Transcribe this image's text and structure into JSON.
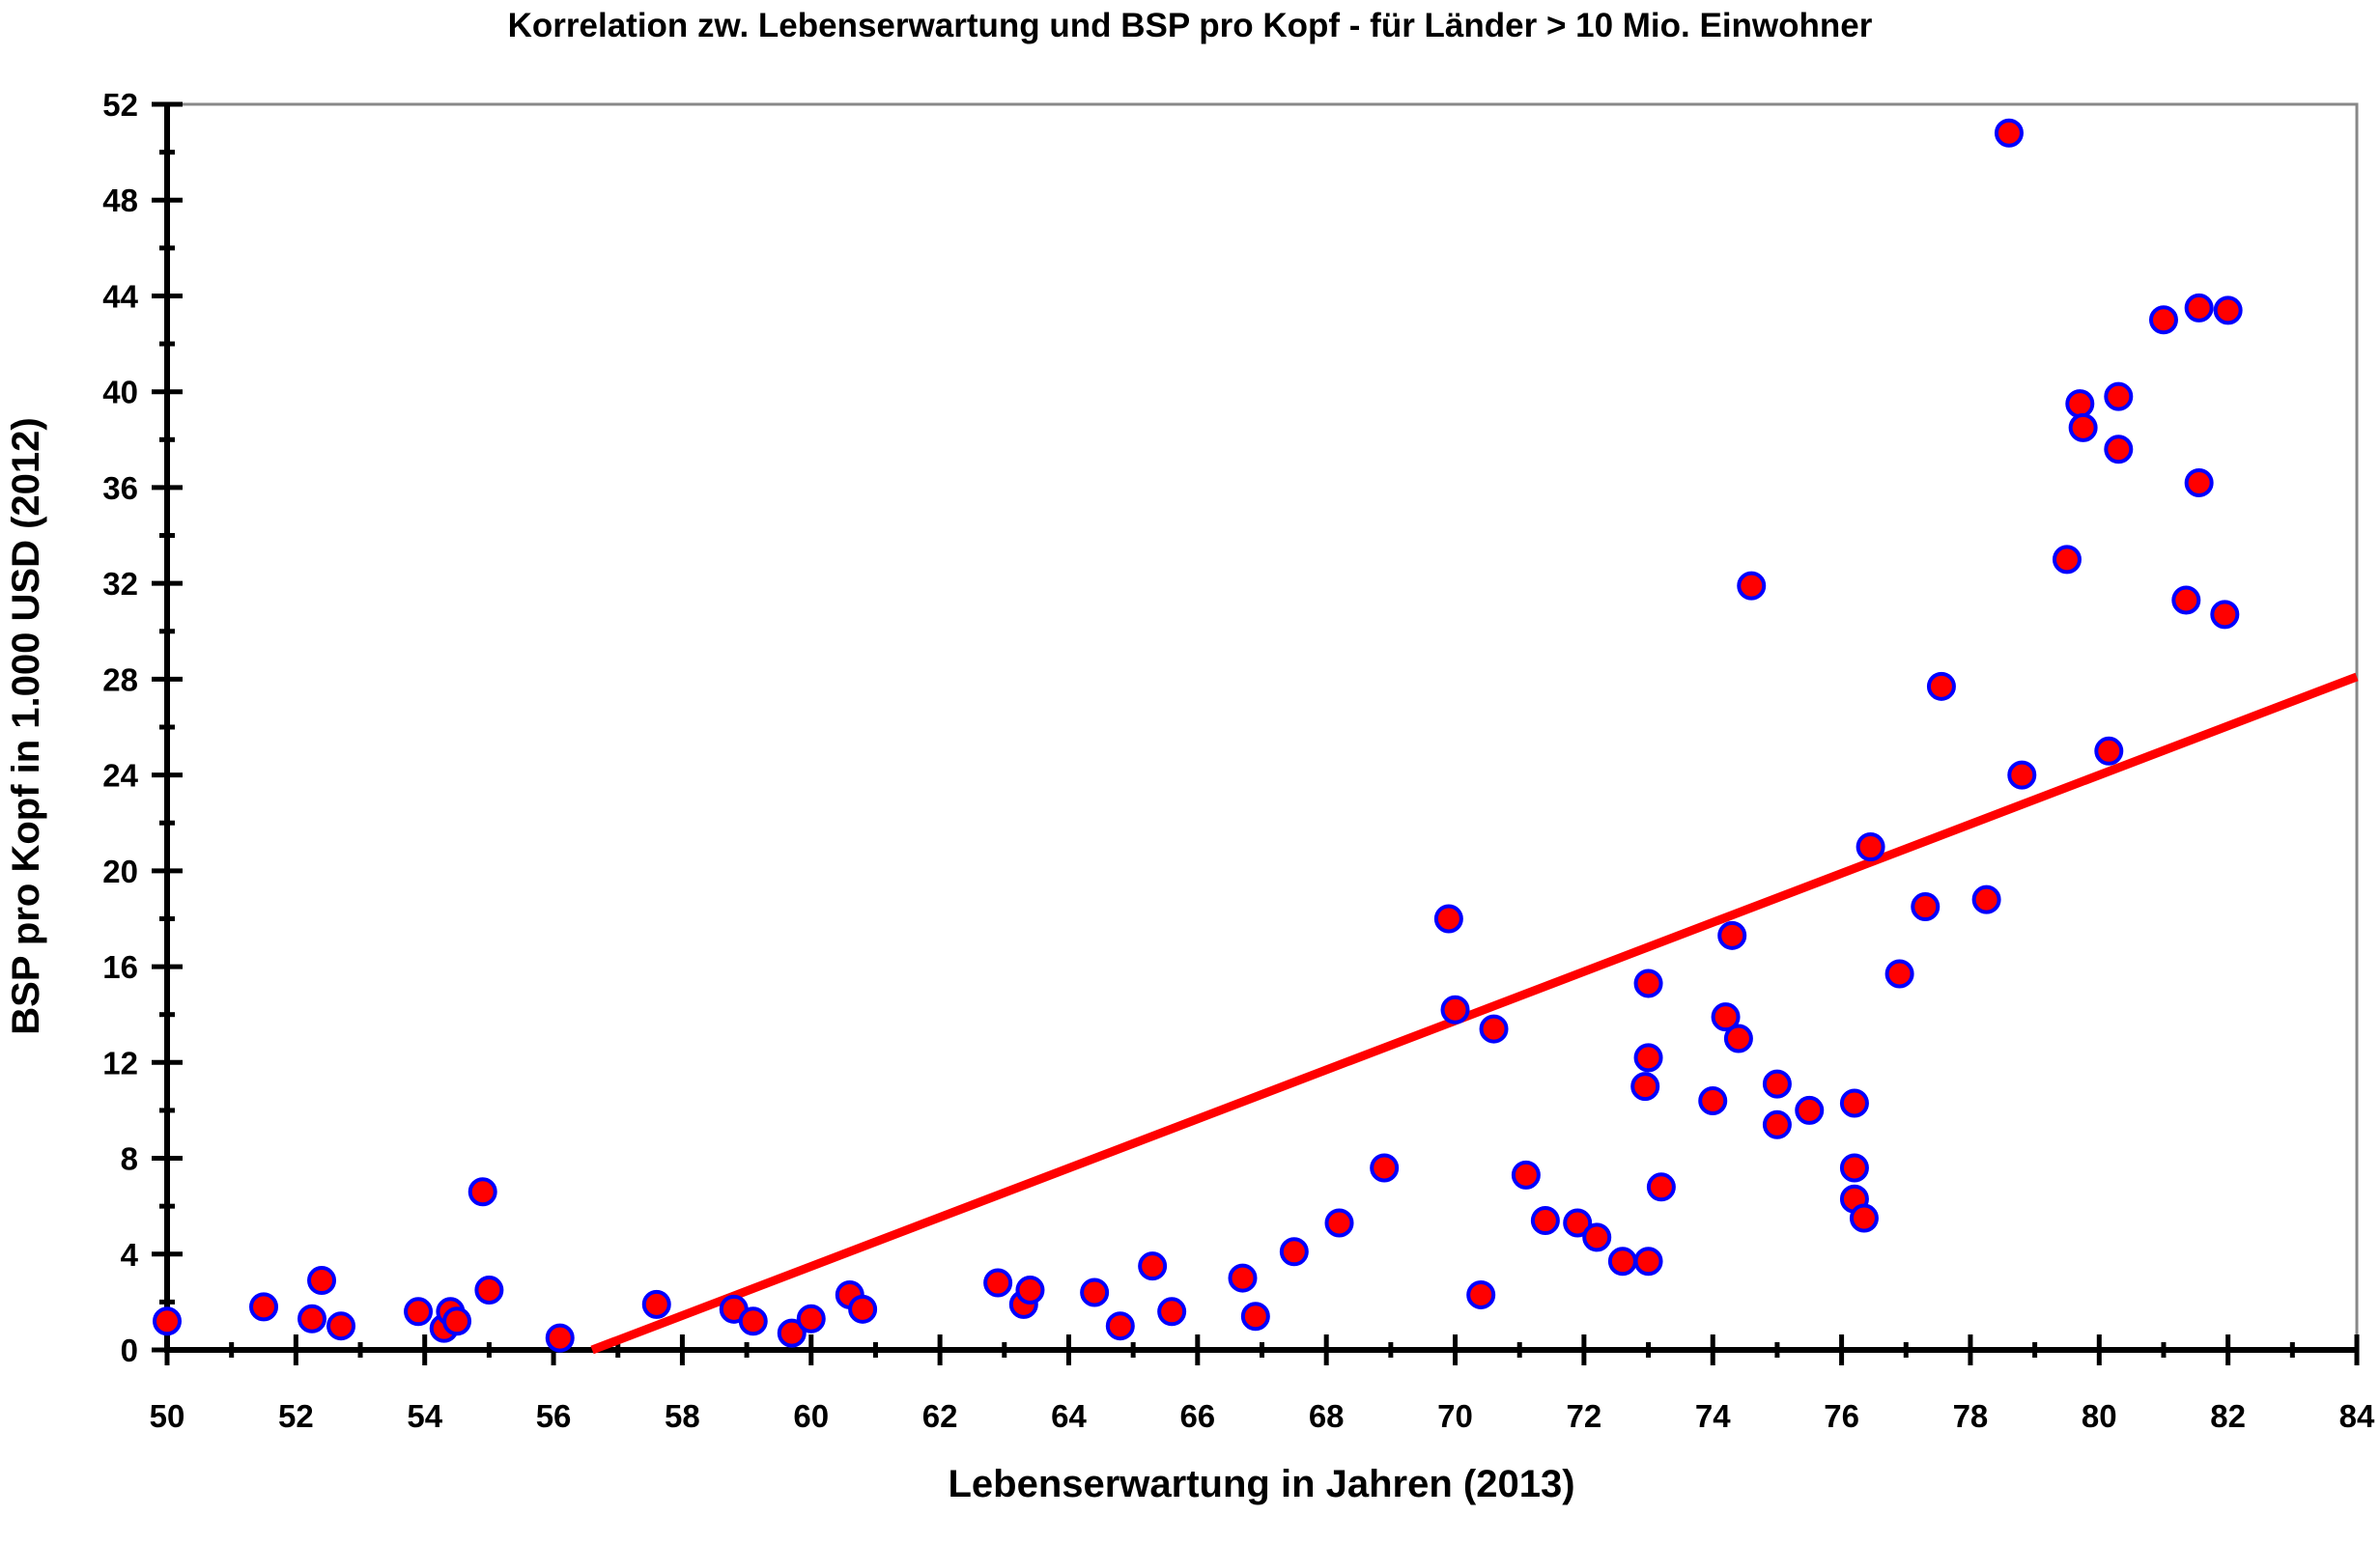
{
  "chart_data": {
    "type": "scatter",
    "title": "Korrelation zw. Lebenserwartung und BSP pro Kopf  -  für Länder > 10 Mio. Einwohner",
    "xlabel": "Lebenserwartung in Jahren (2013)",
    "ylabel": "BSP pro Kopf in 1.000 USD (2012)",
    "xlim": [
      50,
      84
    ],
    "ylim": [
      0,
      52
    ],
    "xticks": [
      50,
      52,
      54,
      56,
      58,
      60,
      62,
      64,
      66,
      68,
      70,
      72,
      74,
      76,
      78,
      80,
      82,
      84
    ],
    "yticks": [
      0,
      4,
      8,
      12,
      16,
      20,
      24,
      28,
      32,
      36,
      40,
      44,
      48,
      52
    ],
    "grid": false,
    "colors": {
      "marker_fill": "#ff0000",
      "marker_edge": "#0000ff",
      "trend": "#ff0000"
    },
    "trendline": {
      "x": [
        56.6,
        84
      ],
      "y": [
        0,
        28.1
      ]
    },
    "points": [
      [
        50.0,
        1.2
      ],
      [
        51.5,
        1.8
      ],
      [
        52.25,
        1.3
      ],
      [
        52.4,
        2.9
      ],
      [
        52.7,
        1.0
      ],
      [
        53.9,
        1.6
      ],
      [
        54.3,
        0.9
      ],
      [
        54.4,
        1.6
      ],
      [
        54.5,
        1.2
      ],
      [
        54.9,
        6.6
      ],
      [
        55.0,
        2.5
      ],
      [
        56.1,
        0.5
      ],
      [
        57.6,
        1.9
      ],
      [
        58.8,
        1.7
      ],
      [
        59.1,
        1.2
      ],
      [
        59.7,
        0.7
      ],
      [
        60.0,
        1.3
      ],
      [
        60.6,
        2.3
      ],
      [
        60.8,
        1.7
      ],
      [
        62.9,
        2.8
      ],
      [
        63.3,
        1.9
      ],
      [
        63.4,
        2.5
      ],
      [
        64.4,
        2.4
      ],
      [
        64.8,
        1.0
      ],
      [
        65.3,
        3.5
      ],
      [
        65.6,
        1.6
      ],
      [
        66.7,
        3.0
      ],
      [
        66.9,
        1.4
      ],
      [
        67.5,
        4.1
      ],
      [
        68.2,
        5.3
      ],
      [
        68.9,
        7.6
      ],
      [
        69.9,
        18.0
      ],
      [
        70.0,
        14.2
      ],
      [
        70.4,
        2.3
      ],
      [
        70.6,
        13.4
      ],
      [
        71.1,
        7.3
      ],
      [
        71.4,
        5.4
      ],
      [
        71.9,
        5.3
      ],
      [
        72.2,
        4.7
      ],
      [
        72.6,
        3.7
      ],
      [
        72.95,
        11.0
      ],
      [
        73.0,
        15.3
      ],
      [
        73.0,
        12.2
      ],
      [
        73.0,
        3.7
      ],
      [
        73.2,
        6.8
      ],
      [
        74.0,
        10.4
      ],
      [
        74.2,
        13.9
      ],
      [
        74.3,
        17.3
      ],
      [
        74.4,
        13.0
      ],
      [
        74.6,
        31.9
      ],
      [
        75.0,
        11.1
      ],
      [
        75.0,
        9.4
      ],
      [
        75.5,
        10.0
      ],
      [
        76.2,
        10.3
      ],
      [
        76.2,
        7.6
      ],
      [
        76.2,
        6.3
      ],
      [
        76.35,
        5.5
      ],
      [
        76.45,
        21.0
      ],
      [
        76.9,
        15.7
      ],
      [
        77.3,
        18.5
      ],
      [
        77.55,
        27.7
      ],
      [
        78.25,
        18.8
      ],
      [
        78.6,
        50.8
      ],
      [
        78.8,
        24.0
      ],
      [
        79.5,
        33.0
      ],
      [
        79.7,
        39.5
      ],
      [
        79.75,
        38.5
      ],
      [
        80.15,
        25.0
      ],
      [
        80.3,
        39.8
      ],
      [
        80.3,
        37.6
      ],
      [
        81.0,
        43.0
      ],
      [
        81.35,
        31.3
      ],
      [
        81.55,
        43.5
      ],
      [
        81.55,
        36.2
      ],
      [
        81.95,
        30.7
      ],
      [
        82.0,
        43.4
      ]
    ]
  }
}
